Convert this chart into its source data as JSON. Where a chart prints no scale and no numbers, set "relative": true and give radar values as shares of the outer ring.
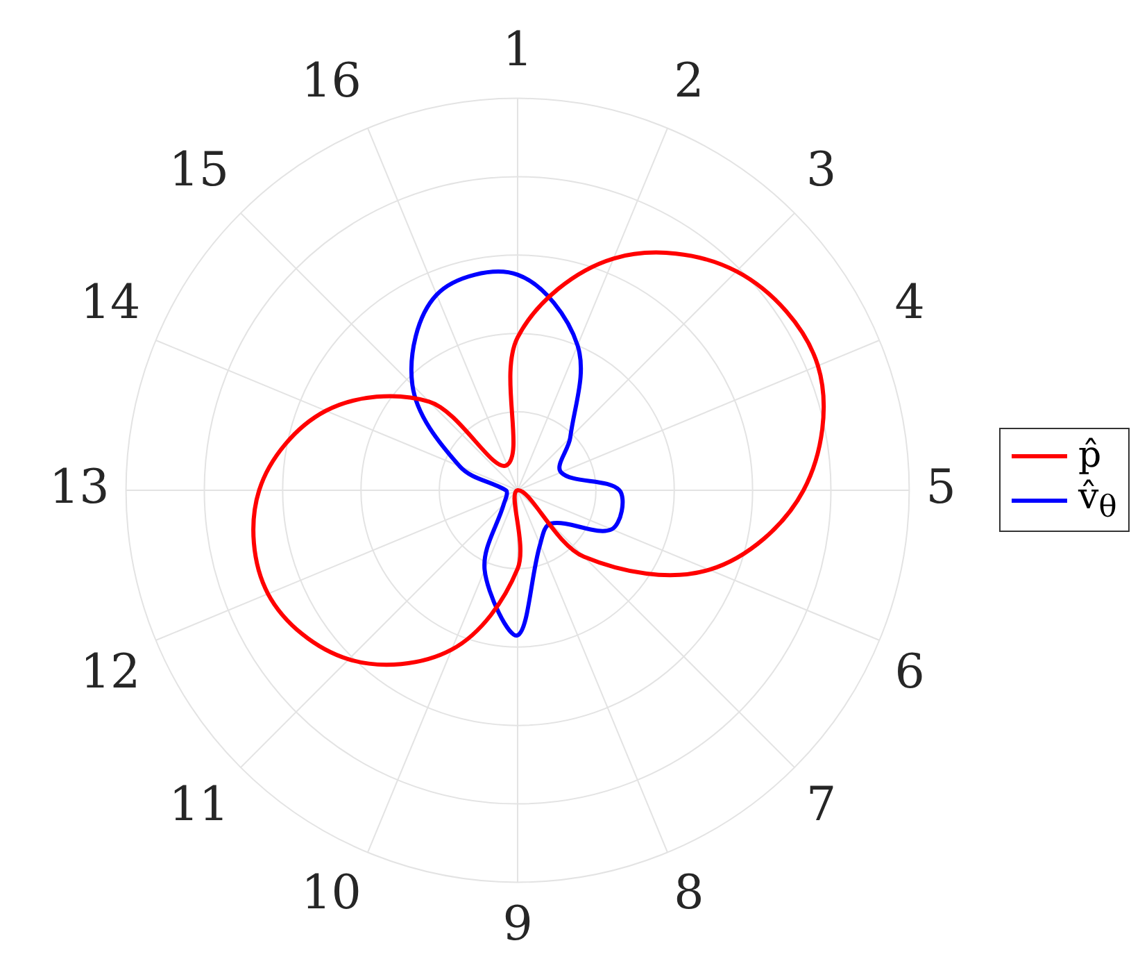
{
  "chart_data": {
    "type": "radar",
    "relative": true,
    "categories": [
      "1",
      "2",
      "3",
      "4",
      "5",
      "6",
      "7",
      "8",
      "9",
      "10",
      "11",
      "12",
      "13",
      "14",
      "15",
      "16"
    ],
    "series": [
      {
        "name": "p̂",
        "color": "#ff0000",
        "values": [
          0.39,
          0.64,
          0.79,
          0.83,
          0.73,
          0.53,
          0.24,
          0,
          0.2,
          0.44,
          0.61,
          0.69,
          0.66,
          0.53,
          0.32,
          0.07
        ]
      },
      {
        "name": "v̂$_{θ}$",
        "color": "#0000ff",
        "values": [
          0.55,
          0.4,
          0.19,
          0.12,
          0.26,
          0.26,
          0.12,
          0.15,
          0.37,
          0.22,
          0.05,
          0.03,
          0.03,
          0.16,
          0.38,
          0.54
        ]
      }
    ],
    "grid": true,
    "legend": "right",
    "marker": "none",
    "line_style": "solid"
  }
}
